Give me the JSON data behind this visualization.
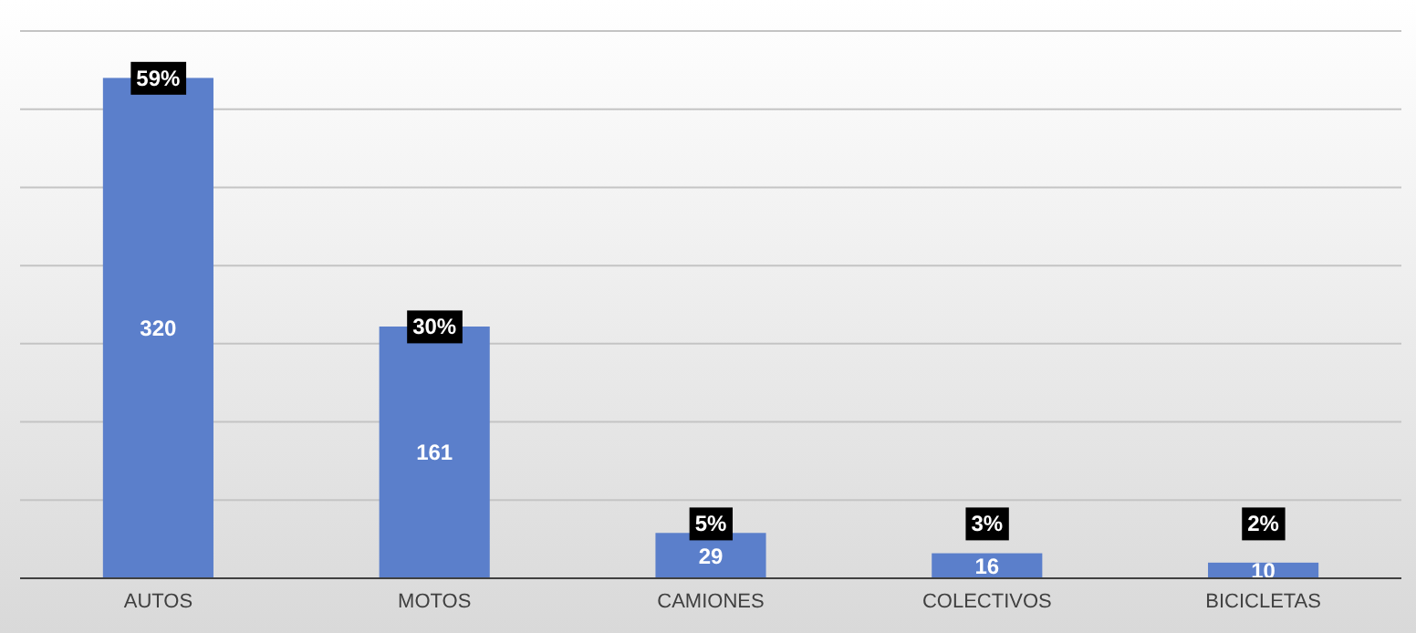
{
  "chart_data": {
    "type": "bar",
    "categories": [
      "AUTOS",
      "MOTOS",
      "CAMIONES",
      "COLECTIVOS",
      "BICICLETAS"
    ],
    "values": [
      320,
      161,
      29,
      16,
      10
    ],
    "color": "#5b7fcb",
    "data_labels": true,
    "ylim": [
      0,
      350
    ],
    "yticks": [
      {
        "value": 0,
        "label": null
      },
      {
        "value": 50,
        "label": null
      },
      {
        "value": 100,
        "label": null
      },
      {
        "value": 150,
        "label": null
      },
      {
        "value": 200,
        "label": null
      },
      {
        "value": 250,
        "label": null
      },
      {
        "value": 300,
        "label": null
      },
      {
        "value": 350,
        "label": null
      }
    ],
    "grid": "y",
    "tick_labels": "x",
    "annotations": [
      {
        "text": "59%",
        "x": "AUTOS",
        "y": 320
      },
      {
        "text": "30%",
        "x": "MOTOS",
        "y": 161
      },
      {
        "text": "5%",
        "x": "CAMIONES",
        "y": 29
      },
      {
        "text": "3%",
        "x": "COLECTIVOS",
        "y": 16
      },
      {
        "text": "2%",
        "x": "BICICLETAS",
        "y": 10
      }
    ]
  }
}
